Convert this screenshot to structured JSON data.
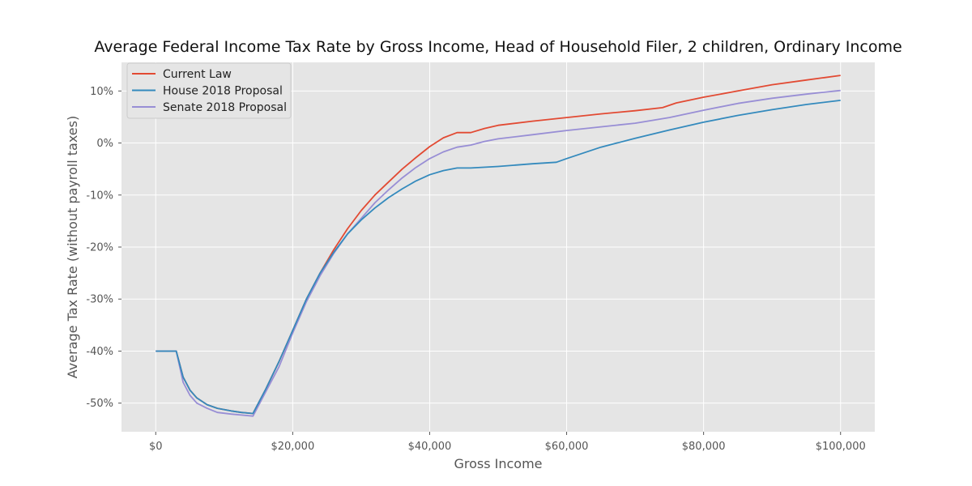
{
  "chart_data": {
    "type": "line",
    "title": "Average Federal Income Tax Rate by Gross Income, Head of Household Filer, 2 children, Ordinary Income",
    "xlabel": "Gross Income",
    "ylabel": "Average Tax Rate (without payroll taxes)",
    "xlim": [
      -5000,
      105000
    ],
    "ylim": [
      -55.5,
      15.5
    ],
    "xticks": [
      0,
      20000,
      40000,
      60000,
      80000,
      100000
    ],
    "xtick_labels": [
      "$0",
      "$20,000",
      "$40,000",
      "$60,000",
      "$80,000",
      "$100,000"
    ],
    "yticks": [
      10,
      0,
      -10,
      -20,
      -30,
      -40,
      -50
    ],
    "ytick_labels": [
      "10%",
      "0%",
      "-10%",
      "-20%",
      "-30%",
      "-40%",
      "-50%"
    ],
    "grid": true,
    "legend_position": "top-left",
    "background": "#e5e5e5",
    "series": [
      {
        "name": "Current Law",
        "color": "#e24a33",
        "x": [
          0,
          2500,
          3000,
          4000,
          5000,
          6000,
          7500,
          9000,
          11000,
          12500,
          14200,
          16000,
          18000,
          20000,
          22000,
          24000,
          26000,
          28000,
          30000,
          32000,
          34000,
          36000,
          38000,
          40000,
          42000,
          44000,
          46000,
          48000,
          50000,
          55000,
          60000,
          65000,
          70000,
          74000,
          76000,
          80000,
          85000,
          90000,
          95000,
          100000
        ],
        "y": [
          -40,
          -40,
          -40,
          -45,
          -47.5,
          -49,
          -50.3,
          -51,
          -51.5,
          -51.8,
          -52,
          -47.5,
          -42,
          -36,
          -30,
          -25,
          -20.5,
          -16.5,
          -13,
          -10,
          -7.5,
          -5,
          -2.8,
          -0.7,
          1.0,
          2.0,
          2.0,
          2.8,
          3.4,
          4.2,
          4.9,
          5.6,
          6.2,
          6.8,
          7.7,
          8.8,
          10,
          11.2,
          12.1,
          13
        ]
      },
      {
        "name": "House 2018 Proposal",
        "color": "#348abd",
        "x": [
          0,
          2500,
          3000,
          4000,
          5000,
          6000,
          7500,
          9000,
          11000,
          12500,
          14200,
          16000,
          18000,
          20000,
          22000,
          24000,
          26000,
          28000,
          30000,
          32000,
          34000,
          36000,
          38000,
          40000,
          42000,
          44000,
          46000,
          50000,
          55000,
          58500,
          60000,
          65000,
          70000,
          75000,
          80000,
          85000,
          90000,
          95000,
          100000
        ],
        "y": [
          -40,
          -40,
          -40,
          -45,
          -47.5,
          -49,
          -50.3,
          -51,
          -51.5,
          -51.8,
          -52,
          -47.5,
          -42,
          -36,
          -30,
          -25,
          -21,
          -17.5,
          -14.8,
          -12.5,
          -10.5,
          -8.8,
          -7.3,
          -6.1,
          -5.3,
          -4.8,
          -4.8,
          -4.5,
          -4.0,
          -3.7,
          -3.0,
          -0.8,
          0.9,
          2.5,
          4.0,
          5.3,
          6.4,
          7.4,
          8.2
        ]
      },
      {
        "name": "Senate 2018 Proposal",
        "color": "#988ed5",
        "x": [
          0,
          2500,
          3000,
          4000,
          5000,
          6000,
          7500,
          9000,
          11000,
          12500,
          14200,
          16000,
          18000,
          20000,
          22000,
          24000,
          26000,
          28000,
          30000,
          32000,
          34000,
          36000,
          38000,
          40000,
          42000,
          44000,
          46000,
          48000,
          50000,
          55000,
          60000,
          65000,
          70000,
          75000,
          80000,
          85000,
          90000,
          95000,
          100000
        ],
        "y": [
          -40,
          -40,
          -40,
          -46,
          -48.5,
          -50,
          -51,
          -51.8,
          -52.1,
          -52.3,
          -52.5,
          -48,
          -43,
          -36.5,
          -30.5,
          -25.5,
          -21.2,
          -17.5,
          -14.5,
          -11.5,
          -9,
          -6.7,
          -4.7,
          -3.0,
          -1.7,
          -0.8,
          -0.4,
          0.3,
          0.8,
          1.6,
          2.4,
          3.1,
          3.8,
          4.9,
          6.3,
          7.6,
          8.6,
          9.4,
          10.1
        ]
      }
    ]
  }
}
